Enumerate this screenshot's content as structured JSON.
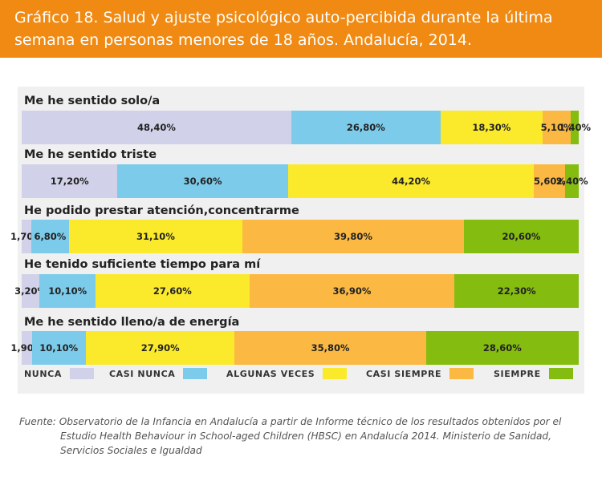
{
  "header": {
    "title_line1": "Gráfico 18. Salud y ajuste psicológico auto-percibida durante la última",
    "title_line2": "semana en personas menores de 18 años. Andalucía, 2014."
  },
  "colors": {
    "header_bg": "#f08a12",
    "panel_bg": "#f0f0f0",
    "nunca": "#d1d1ea",
    "casi_nunca": "#7ccbea",
    "algunas_veces": "#fbea2c",
    "casi_siempre": "#fbb943",
    "siempre": "#84bc0f"
  },
  "chart_data": {
    "type": "bar",
    "orientation": "horizontal",
    "stacked": "100%",
    "categories": [
      "Me he sentido solo/a",
      "Me he sentido triste",
      "He podido prestar atención,concentrarme",
      "He tenido suficiente tiempo para mí",
      "Me he sentido lleno/a de energía"
    ],
    "series": [
      {
        "name": "NUNCA",
        "values": [
          48.4,
          17.2,
          1.7,
          3.2,
          1.9
        ],
        "labels": [
          "48,40%",
          "17,20%",
          "1,70%",
          "3,20%",
          "1,90%"
        ],
        "color": "#d1d1ea"
      },
      {
        "name": "CASI NUNCA",
        "values": [
          26.8,
          30.6,
          6.8,
          10.1,
          10.1
        ],
        "labels": [
          "26,80%",
          "30,60%",
          "6,80%",
          "10,10%",
          "10,10%"
        ],
        "color": "#7ccbea"
      },
      {
        "name": "ALGUNAS VECES",
        "values": [
          18.3,
          44.2,
          31.1,
          27.6,
          27.9
        ],
        "labels": [
          "18,30%",
          "44,20%",
          "31,10%",
          "27,60%",
          "27,90%"
        ],
        "color": "#fbea2c"
      },
      {
        "name": "CASI SIEMPRE",
        "values": [
          5.1,
          5.6,
          39.8,
          36.9,
          35.8
        ],
        "labels": [
          "5,10%",
          "5,60%",
          "39,80%",
          "36,90%",
          "35,80%"
        ],
        "color": "#fbb943"
      },
      {
        "name": "SIEMPRE",
        "values": [
          1.4,
          2.4,
          20.6,
          22.3,
          28.6
        ],
        "labels": [
          "1,40%",
          "2,40%",
          "20,60%",
          "22,30%",
          "28,60%"
        ],
        "color": "#84bc0f"
      }
    ],
    "legend_position": "bottom",
    "grid": false
  },
  "source": {
    "line1": "Fuente: Observatorio de la Infancia en Andalucía a partir de Informe técnico de los resultados obtenidos por el",
    "line2": "Estudio Health Behaviour in School-aged Children (HBSC) en Andalucía 2014. Ministerio de Sanidad,",
    "line3": "Servicios Sociales e Igualdad"
  }
}
